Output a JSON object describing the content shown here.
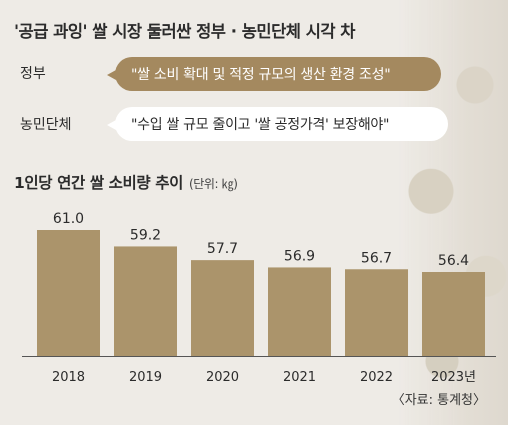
{
  "headline": "'공급 과잉' 쌀 시장 둘러싼 정부 · 농민단체 시각 차",
  "positions": [
    {
      "label": "정부",
      "quote": "\"쌀 소비 확대 및 적정 규모의 생산 환경 조성\""
    },
    {
      "label": "농민단체",
      "quote": "\"수입 쌀 규모 줄이고 '쌀 공정가격' 보장해야\""
    }
  ],
  "colors": {
    "bar": "#ab946b",
    "government_bubble": "#a4895f",
    "farmer_bubble": "#ffffff"
  },
  "chart_data": {
    "type": "bar",
    "title": "1인당 연간 쌀 소비량 추이",
    "unit": "(단위: ㎏)",
    "categories": [
      "2018",
      "2019",
      "2020",
      "2021",
      "2022",
      "2023년"
    ],
    "values": [
      61.0,
      59.2,
      57.7,
      56.9,
      56.7,
      56.4
    ],
    "value_labels": [
      "61.0",
      "59.2",
      "57.7",
      "56.9",
      "56.7",
      "56.4"
    ],
    "xlabel": "",
    "ylabel": "",
    "grid": false,
    "legend": "none"
  },
  "source": "〈자료: 통계청〉"
}
